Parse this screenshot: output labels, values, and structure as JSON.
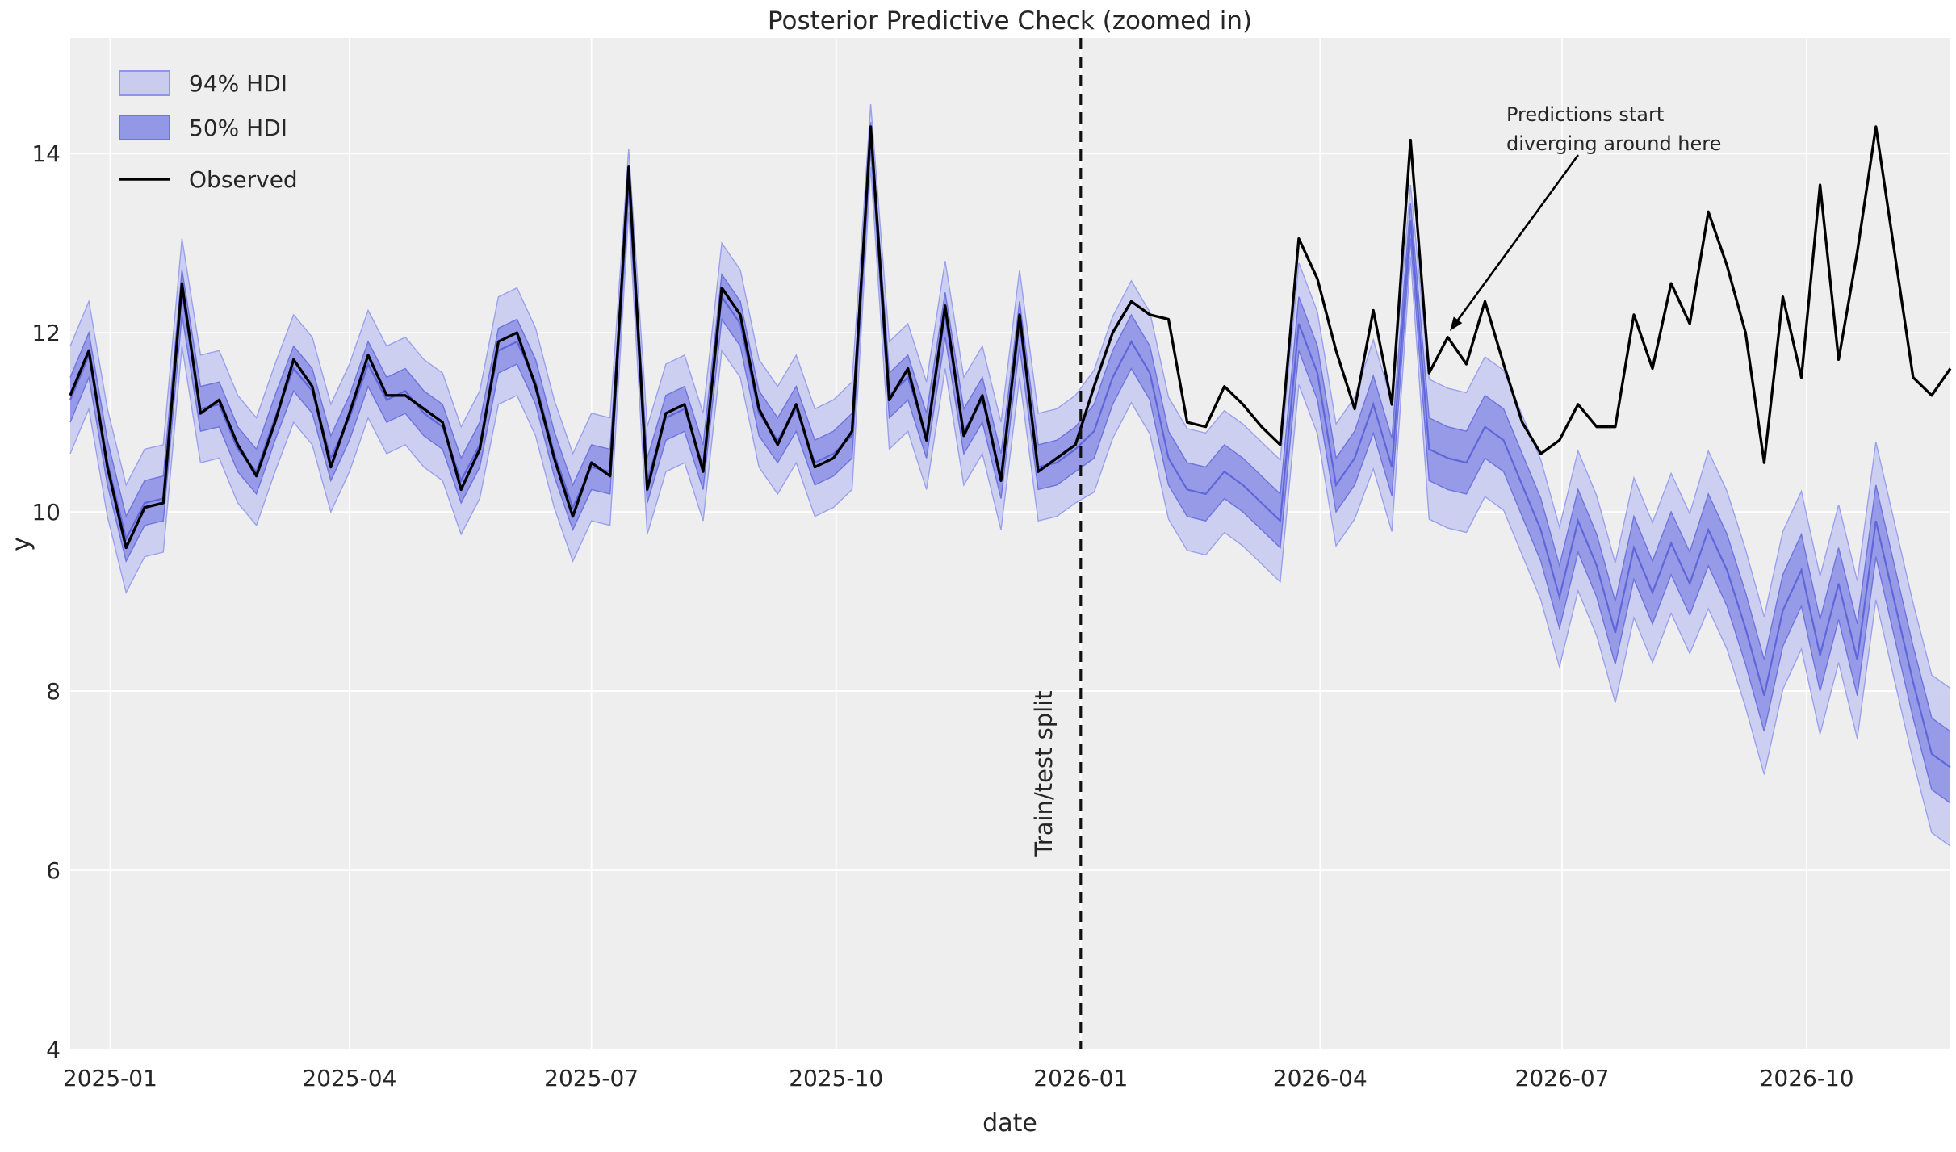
{
  "title": "Posterior Predictive Check (zoomed in)",
  "axes": {
    "xlabel": "date",
    "ylabel": "y",
    "ylim": [
      4,
      15.29
    ],
    "yticks": [
      "4",
      "6",
      "8",
      "10",
      "12",
      "14"
    ],
    "ytick_values": [
      4,
      6,
      8,
      10,
      12,
      14
    ],
    "xticks": [
      {
        "label": "2025-01",
        "date": "2025-01-01"
      },
      {
        "label": "2025-04",
        "date": "2025-04-01"
      },
      {
        "label": "2025-07",
        "date": "2025-07-01"
      },
      {
        "label": "2025-10",
        "date": "2025-10-01"
      },
      {
        "label": "2026-01",
        "date": "2026-01-01"
      },
      {
        "label": "2026-04",
        "date": "2026-04-01"
      },
      {
        "label": "2026-07",
        "date": "2026-07-01"
      },
      {
        "label": "2026-10",
        "date": "2026-10-01"
      }
    ]
  },
  "legend": {
    "hdi94_label": "94% HDI",
    "hdi50_label": "50% HDI",
    "observed_label": "Observed"
  },
  "annotation": {
    "line1": "Predictions start",
    "line2": "diverging around here"
  },
  "split": {
    "label": "Train/test split",
    "date": "2026-01-01"
  },
  "colors": {
    "plot_bg": "#eeeeee",
    "grid": "#ffffff",
    "observed": "#000000",
    "median_line": "#5f66d8",
    "hdi94_fill": "#c9cbef",
    "hdi94_edge": "#9aa0ec",
    "hdi50_fill": "#9297e6",
    "hdi50_edge": "#6d74dd",
    "text": "#262626",
    "split_line": "#111111"
  },
  "chart_data": {
    "type": "line",
    "title": "Posterior Predictive Check (zoomed in)",
    "xlabel": "date",
    "ylabel": "y",
    "ylim": [
      4,
      15.29
    ],
    "grid": true,
    "legend_position": "upper left",
    "x_start": "2024-12-17",
    "x_step_days": 7,
    "n_points": 102,
    "train_test_split_date": "2026-01-01",
    "series": [
      {
        "name": "Observed",
        "values": [
          11.3,
          11.8,
          10.5,
          9.6,
          10.05,
          10.1,
          12.55,
          11.1,
          11.25,
          10.75,
          10.4,
          11.0,
          11.7,
          11.4,
          10.5,
          11.1,
          11.75,
          11.3,
          11.3,
          11.15,
          11.0,
          10.25,
          10.7,
          11.9,
          12.0,
          11.4,
          10.6,
          9.95,
          10.55,
          10.4,
          13.85,
          10.25,
          11.1,
          11.2,
          10.45,
          12.5,
          12.2,
          11.15,
          10.75,
          11.2,
          10.5,
          10.6,
          10.9,
          14.3,
          11.25,
          11.6,
          10.8,
          12.3,
          10.85,
          11.3,
          10.35,
          12.2,
          10.45,
          10.6,
          10.75,
          11.4,
          12.0,
          12.35,
          12.2,
          12.15,
          11.0,
          10.95,
          11.4,
          11.2,
          10.95,
          10.75,
          13.05,
          12.6,
          11.8,
          11.15,
          12.25,
          11.2,
          14.15,
          11.55,
          11.95,
          11.65,
          12.35,
          11.65,
          11.0,
          10.65,
          10.8,
          11.2,
          10.95,
          10.95,
          12.2,
          11.6,
          12.55,
          12.1,
          13.35,
          12.75,
          12.0,
          10.55,
          12.4,
          11.5,
          13.65,
          11.7,
          12.9,
          14.3,
          12.9,
          11.5,
          11.3,
          11.6
        ]
      },
      {
        "name": "Prediction median",
        "values": [
          11.25,
          11.75,
          10.55,
          9.7,
          10.1,
          10.15,
          12.45,
          11.15,
          11.2,
          10.7,
          10.45,
          11.05,
          11.6,
          11.35,
          10.6,
          11.05,
          11.65,
          11.25,
          11.35,
          11.1,
          10.95,
          10.35,
          10.75,
          11.8,
          11.9,
          11.45,
          10.65,
          10.05,
          10.5,
          10.45,
          13.7,
          10.35,
          11.05,
          11.15,
          10.5,
          12.4,
          12.1,
          11.1,
          10.8,
          11.15,
          10.55,
          10.65,
          10.85,
          14.2,
          11.3,
          11.5,
          10.85,
          12.2,
          10.9,
          11.25,
          10.4,
          12.1,
          10.5,
          10.55,
          10.7,
          10.9,
          11.5,
          11.9,
          11.55,
          10.6,
          10.25,
          10.2,
          10.45,
          10.3,
          10.1,
          9.9,
          12.1,
          11.55,
          10.3,
          10.6,
          11.2,
          10.5,
          13.25,
          10.7,
          10.6,
          10.55,
          10.95,
          10.8,
          10.3,
          9.8,
          9.05,
          9.9,
          9.4,
          8.65,
          9.6,
          9.1,
          9.65,
          9.2,
          9.8,
          9.35,
          8.7,
          7.95,
          8.9,
          9.35,
          8.4,
          9.2,
          8.35,
          9.9,
          9.0,
          8.1,
          7.3,
          7.15
        ]
      },
      {
        "name": "50% HDI half-width",
        "values": [
          0.25,
          0.25,
          0.25,
          0.25,
          0.25,
          0.25,
          0.25,
          0.25,
          0.25,
          0.25,
          0.25,
          0.25,
          0.25,
          0.25,
          0.25,
          0.25,
          0.25,
          0.25,
          0.25,
          0.25,
          0.25,
          0.25,
          0.25,
          0.25,
          0.25,
          0.25,
          0.25,
          0.25,
          0.25,
          0.25,
          0.15,
          0.25,
          0.25,
          0.25,
          0.25,
          0.25,
          0.25,
          0.25,
          0.25,
          0.25,
          0.25,
          0.25,
          0.25,
          0.15,
          0.25,
          0.25,
          0.25,
          0.25,
          0.25,
          0.25,
          0.25,
          0.25,
          0.25,
          0.25,
          0.25,
          0.3,
          0.3,
          0.3,
          0.3,
          0.3,
          0.3,
          0.3,
          0.3,
          0.3,
          0.3,
          0.3,
          0.3,
          0.3,
          0.3,
          0.3,
          0.32,
          0.32,
          0.2,
          0.35,
          0.35,
          0.35,
          0.35,
          0.35,
          0.35,
          0.35,
          0.35,
          0.35,
          0.35,
          0.35,
          0.35,
          0.35,
          0.35,
          0.35,
          0.4,
          0.4,
          0.4,
          0.4,
          0.4,
          0.4,
          0.4,
          0.4,
          0.4,
          0.4,
          0.4,
          0.4,
          0.4,
          0.4
        ]
      },
      {
        "name": "94% HDI half-width",
        "values": [
          0.6,
          0.6,
          0.6,
          0.6,
          0.6,
          0.6,
          0.6,
          0.6,
          0.6,
          0.6,
          0.6,
          0.6,
          0.6,
          0.6,
          0.6,
          0.6,
          0.6,
          0.6,
          0.6,
          0.6,
          0.6,
          0.6,
          0.6,
          0.6,
          0.6,
          0.6,
          0.6,
          0.6,
          0.6,
          0.6,
          0.35,
          0.6,
          0.6,
          0.6,
          0.6,
          0.6,
          0.6,
          0.6,
          0.6,
          0.6,
          0.6,
          0.6,
          0.6,
          0.35,
          0.6,
          0.6,
          0.6,
          0.6,
          0.6,
          0.6,
          0.6,
          0.6,
          0.6,
          0.6,
          0.6,
          0.68,
          0.68,
          0.68,
          0.68,
          0.68,
          0.68,
          0.68,
          0.68,
          0.68,
          0.68,
          0.68,
          0.68,
          0.68,
          0.68,
          0.68,
          0.72,
          0.72,
          0.4,
          0.78,
          0.78,
          0.78,
          0.78,
          0.78,
          0.78,
          0.78,
          0.78,
          0.78,
          0.78,
          0.78,
          0.78,
          0.78,
          0.78,
          0.78,
          0.88,
          0.88,
          0.88,
          0.88,
          0.88,
          0.88,
          0.88,
          0.88,
          0.88,
          0.88,
          0.88,
          0.88,
          0.88,
          0.88
        ]
      }
    ]
  }
}
